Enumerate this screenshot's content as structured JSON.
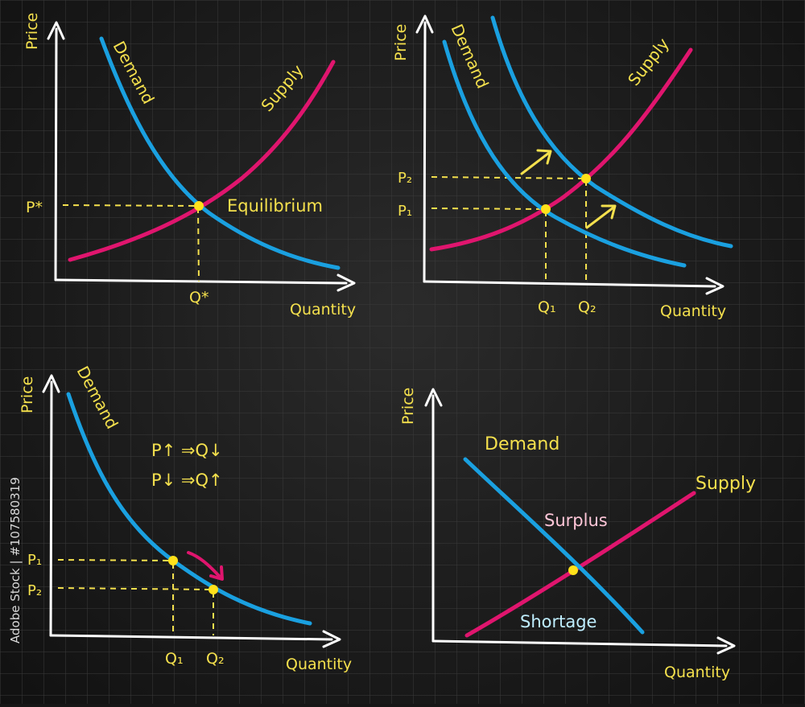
{
  "colors": {
    "background": "#1c1c1c",
    "grid": "#3a3a3a",
    "axis": "#ffffff",
    "demand": "#1aa0e0",
    "supply": "#e0156e",
    "label": "#f4e04d",
    "guide": "#f4e04d",
    "point": "#ffe11a",
    "surplus": "#ffc6d8",
    "shortage": "#bfeeff"
  },
  "watermark": "Adobe Stock | #107580319",
  "panel1": {
    "y_axis": "Price",
    "x_axis": "Quantity",
    "demand": "Demand",
    "supply": "Supply",
    "p_star": "P*",
    "q_star": "Q*",
    "equilibrium": "Equilibrium"
  },
  "panel2": {
    "y_axis": "Price",
    "x_axis": "Quantity",
    "demand": "Demand",
    "supply": "Supply",
    "p1": "P₁",
    "p2": "P₂",
    "q1": "Q₁",
    "q2": "Q₂"
  },
  "panel3": {
    "y_axis": "Price",
    "x_axis": "Quantity",
    "demand": "Demand",
    "rule1": "P↑ ⇒Q↓",
    "rule2": "P↓ ⇒Q↑",
    "p1": "P₁",
    "p2": "P₂",
    "q1": "Q₁",
    "q2": "Q₂"
  },
  "panel4": {
    "y_axis": "Price",
    "x_axis": "Quantity",
    "demand": "Demand",
    "supply": "Supply",
    "surplus": "Surplus",
    "shortage": "Shortage"
  }
}
